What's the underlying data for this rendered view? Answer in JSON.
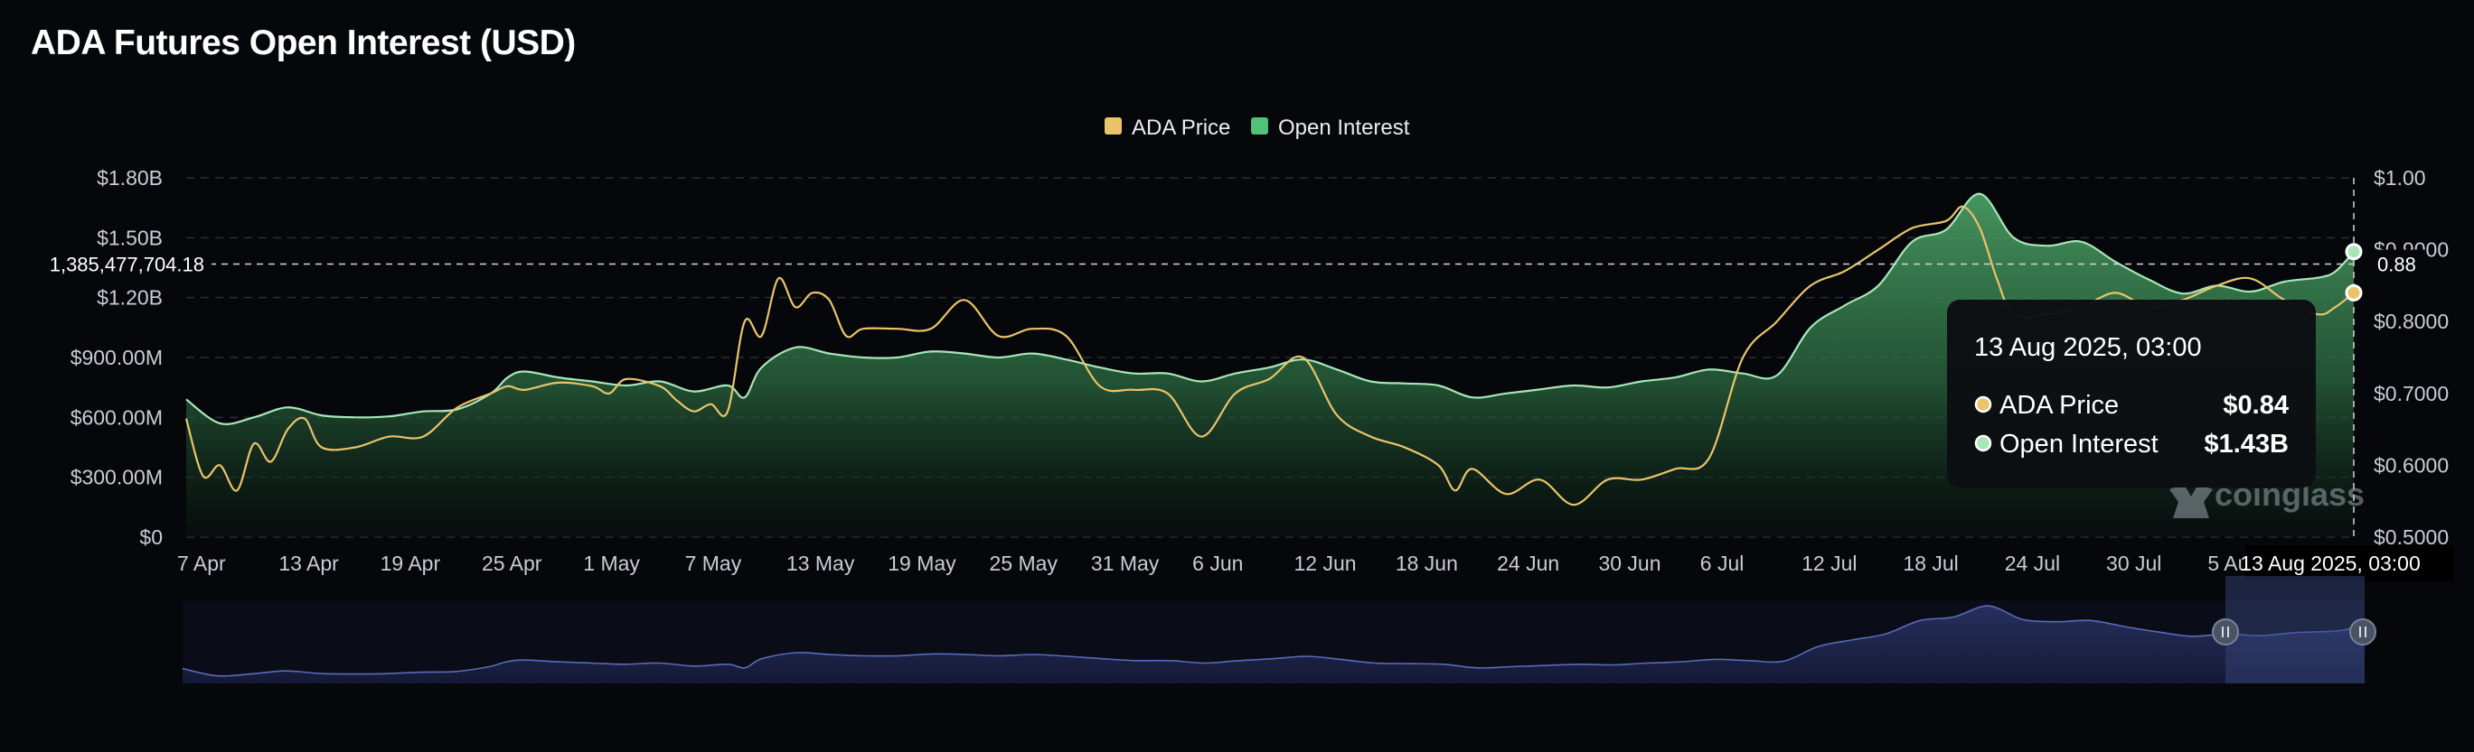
{
  "colors": {
    "background": "#05070b",
    "price": "#e9c46a",
    "oi_line": "#a8e6b8",
    "oi_fill": "#3e8a55",
    "grid": "#2a2f38",
    "navigator": "#5a6ab8",
    "tooltip_bg": "#0c0e12"
  },
  "chart_data": {
    "type": "area",
    "title": "ADA Futures Open Interest (USD)",
    "legend": [
      "ADA Price",
      "Open Interest"
    ],
    "legend_position": "top-center",
    "grid": true,
    "left_axis": {
      "ticks": [
        "$0",
        "$300.00M",
        "$600.00M",
        "$900.00M",
        "$1.20B",
        "$1.50B",
        "$1.80B"
      ],
      "range": [
        0,
        1800000000
      ]
    },
    "right_axis": {
      "ticks": [
        "$0.5000",
        "$0.6000",
        "$0.7000",
        "$0.8000",
        "$0.9000",
        "$1.00"
      ],
      "range": [
        0.5,
        1.0
      ]
    },
    "x_ticks": [
      "7 Apr",
      "13 Apr",
      "19 Apr",
      "25 Apr",
      "1 May",
      "7 May",
      "13 May",
      "19 May",
      "25 May",
      "31 May",
      "6 Jun",
      "12 Jun",
      "18 Jun",
      "24 Jun",
      "30 Jun",
      "6 Jul",
      "12 Jul",
      "18 Jul",
      "24 Jul",
      "30 Jul",
      "5 Aug"
    ],
    "x_days": [
      0,
      6,
      12,
      18,
      24,
      30,
      36,
      42,
      48,
      54,
      60,
      66,
      72,
      78,
      84,
      90,
      96,
      102,
      108,
      114,
      120
    ],
    "x_end_day": 128.1,
    "series": [
      {
        "name": "Open Interest",
        "axis": "left",
        "x": [
          0,
          2,
          4,
          6,
          8,
          10,
          12,
          14,
          16,
          18,
          19,
          20,
          22,
          24,
          26,
          28,
          30,
          32,
          33,
          34,
          36,
          38,
          40,
          42,
          44,
          46,
          48,
          50,
          52,
          54,
          56,
          58,
          60,
          62,
          64,
          66,
          68,
          70,
          72,
          74,
          76,
          78,
          80,
          82,
          84,
          86,
          88,
          90,
          92,
          94,
          96,
          98,
          100,
          102,
          104,
          106,
          108,
          110,
          112,
          114,
          116,
          118,
          120,
          122,
          124,
          126,
          127,
          128.1
        ],
        "values": [
          690,
          570,
          600,
          650,
          610,
          600,
          605,
          630,
          640,
          720,
          800,
          830,
          800,
          780,
          760,
          780,
          730,
          760,
          700,
          850,
          950,
          920,
          900,
          900,
          930,
          920,
          900,
          920,
          890,
          850,
          820,
          820,
          780,
          820,
          850,
          890,
          840,
          780,
          770,
          760,
          700,
          720,
          740,
          760,
          750,
          780,
          800,
          840,
          820,
          810,
          1050,
          1160,
          1260,
          1480,
          1540,
          1720,
          1500,
          1460,
          1480,
          1380,
          1290,
          1220,
          1260,
          1230,
          1280,
          1300,
          1330,
          1430
        ]
      },
      {
        "name": "ADA Price",
        "axis": "right",
        "x": [
          0,
          1,
          2,
          3,
          4,
          5,
          6,
          7,
          8,
          10,
          12,
          14,
          16,
          18,
          19,
          20,
          22,
          24,
          25,
          26,
          28,
          29,
          30,
          31,
          32,
          33,
          34,
          35,
          36,
          37,
          38,
          39,
          40,
          42,
          44,
          46,
          48,
          50,
          52,
          54,
          56,
          58,
          60,
          62,
          64,
          66,
          68,
          70,
          72,
          74,
          75,
          76,
          78,
          80,
          82,
          84,
          86,
          88,
          90,
          92,
          94,
          96,
          98,
          100,
          102,
          104,
          105,
          106,
          107,
          108,
          110,
          112,
          114,
          116,
          118,
          120,
          122,
          124,
          126,
          127,
          128.1
        ],
        "values": [
          0.665,
          0.585,
          0.6,
          0.565,
          0.63,
          0.605,
          0.65,
          0.665,
          0.625,
          0.625,
          0.64,
          0.64,
          0.68,
          0.7,
          0.71,
          0.705,
          0.715,
          0.71,
          0.7,
          0.72,
          0.71,
          0.69,
          0.675,
          0.685,
          0.675,
          0.8,
          0.78,
          0.86,
          0.82,
          0.84,
          0.83,
          0.78,
          0.79,
          0.79,
          0.79,
          0.83,
          0.78,
          0.79,
          0.78,
          0.71,
          0.705,
          0.7,
          0.64,
          0.7,
          0.72,
          0.75,
          0.67,
          0.64,
          0.625,
          0.6,
          0.565,
          0.595,
          0.56,
          0.58,
          0.545,
          0.58,
          0.58,
          0.595,
          0.61,
          0.75,
          0.8,
          0.85,
          0.87,
          0.9,
          0.93,
          0.94,
          0.96,
          0.93,
          0.86,
          0.81,
          0.81,
          0.82,
          0.84,
          0.82,
          0.83,
          0.85,
          0.86,
          0.83,
          0.81,
          0.82,
          0.84
        ]
      }
    ],
    "crosshair": {
      "left_label": "1,385,477,704.18",
      "right_label": "0.88",
      "x_label": "13 Aug 2025, 03:00"
    },
    "tooltip": {
      "title": "13 Aug 2025, 03:00",
      "rows": [
        {
          "name": "ADA Price",
          "value": "$0.84"
        },
        {
          "name": "Open Interest",
          "value": "$1.43B"
        }
      ]
    },
    "watermark": "coinglass"
  }
}
